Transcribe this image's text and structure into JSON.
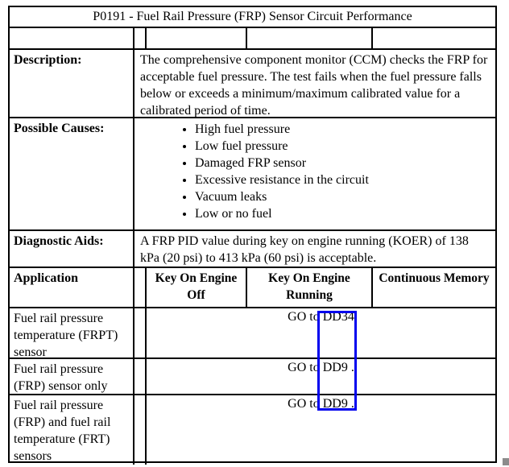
{
  "table": {
    "title": "P0191 - Fuel Rail Pressure (FRP) Sensor Circuit Performance",
    "description": {
      "label": "Description:",
      "text": "The comprehensive component monitor (CCM) checks the FRP for acceptable fuel pressure. The test fails when the fuel pressure falls below or exceeds a minimum/maximum calibrated value for a calibrated period of time."
    },
    "possible_causes": {
      "label": "Possible Causes:",
      "items": [
        "High fuel pressure",
        "Low fuel pressure",
        "Damaged FRP sensor",
        "Excessive resistance in the circuit",
        "Vacuum leaks",
        "Low or no fuel"
      ]
    },
    "diagnostic_aids": {
      "label": "Diagnostic Aids:",
      "text": "A FRP PID value during key on engine running (KOER) of 138 kPa (20 psi) to 413 kPa (60 psi) is acceptable."
    },
    "header": {
      "application": "Application",
      "key_on_engine_off": "Key On Engine Off",
      "key_on_engine_running": "Key On Engine Running",
      "continuous_memory": "Continuous Memory"
    },
    "rows": [
      {
        "application": "Fuel rail pressure temperature (FRPT) sensor",
        "action_prefix": "GO to ",
        "action_target": "DD34",
        "action_suffix": ""
      },
      {
        "application": "Fuel rail pressure (FRP) sensor only",
        "action_prefix": "GO to ",
        "action_target": "DD9",
        "action_suffix": " ."
      },
      {
        "application": "Fuel rail pressure (FRP) and fuel rail temperature (FRT) sensors",
        "action_prefix": "GO to ",
        "action_target": "DD9",
        "action_suffix": " ."
      }
    ],
    "annotation_color": "#0000EE"
  }
}
